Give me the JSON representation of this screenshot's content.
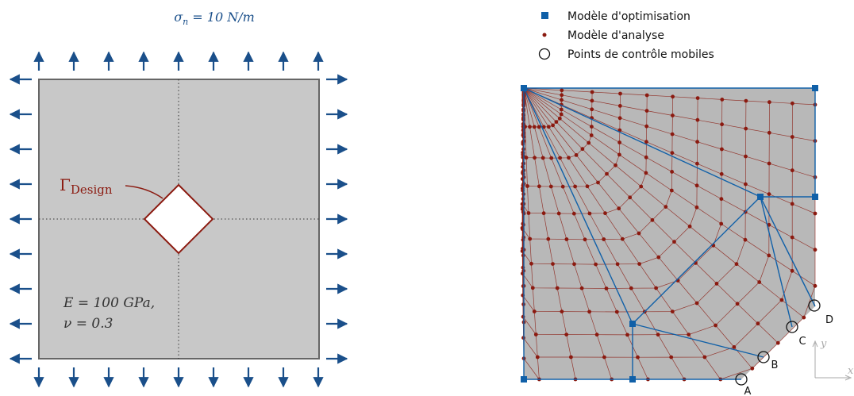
{
  "left_panel": {
    "load_label": "σn = 10 N/m",
    "load_sigma": "σ",
    "load_sub": "n",
    "load_rest": " = 10 N/m",
    "design_label_gamma": "Γ",
    "design_label_sub": "Design",
    "material_line1": "E = 100 GPa,",
    "material_line2": "ν = 0.3"
  },
  "right_panel": {
    "legend": [
      {
        "label": "Modèle d'optimisation",
        "marker": "filled-square",
        "color": "#1060a8"
      },
      {
        "label": "Modèle d'analyse",
        "marker": "dot",
        "color": "#8b1a10"
      },
      {
        "label": "Points de contrôle mobiles",
        "marker": "open-circle",
        "color": "#111111"
      }
    ],
    "point_labels": [
      "A",
      "B",
      "C",
      "D"
    ],
    "axis_label_y": "y",
    "axis_label_x": "x"
  },
  "colors": {
    "arrow": "#1a4f8a",
    "plate_fill": "#c8c8c8",
    "plate_stroke": "#666666",
    "hole_stroke": "#8b1a10",
    "optimisation": "#1060a8",
    "analysis": "#8b1a10",
    "mesh_fill": "#b8b8b8"
  }
}
